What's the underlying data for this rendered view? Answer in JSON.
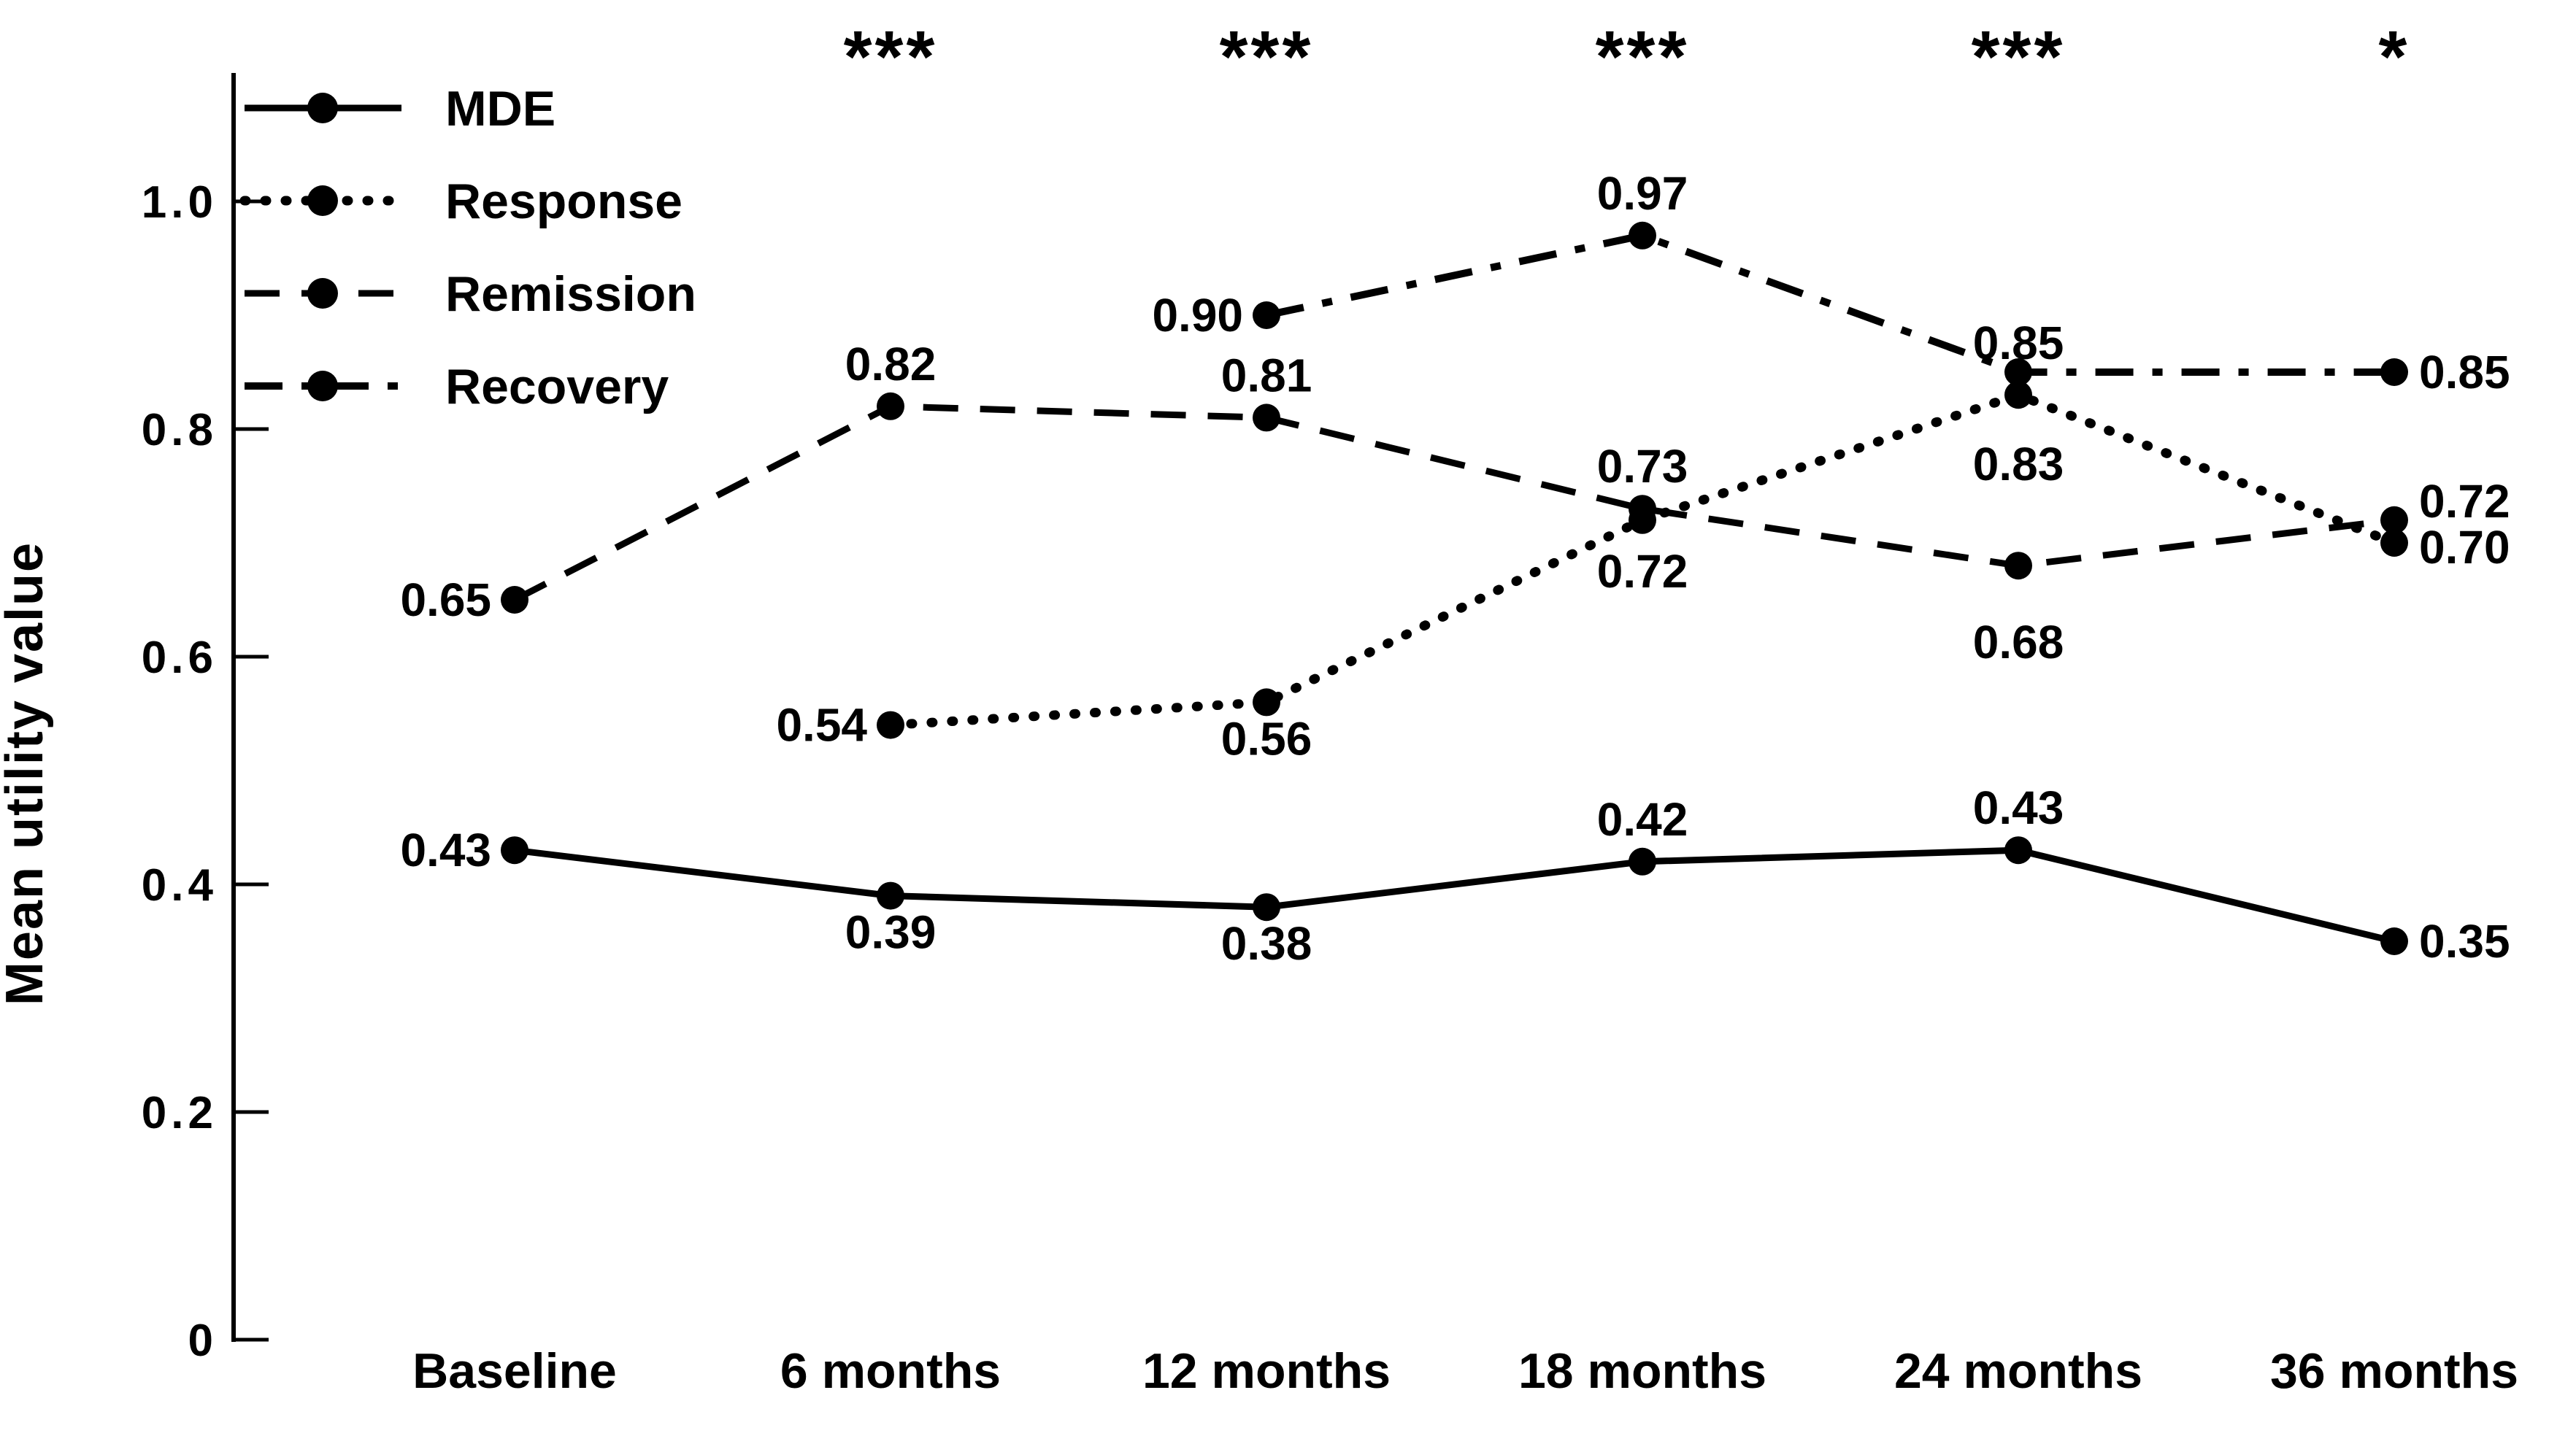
{
  "chart_data": {
    "type": "line",
    "title": "",
    "xlabel": "",
    "ylabel": "Mean utility value",
    "categories": [
      "Baseline",
      "6 months",
      "12 months",
      "18 months",
      "24 months",
      "36 months"
    ],
    "ylim": [
      0,
      1.1
    ],
    "ytick_values": [
      0,
      0.2,
      0.4,
      0.6,
      0.8,
      1.0
    ],
    "ytick_labels": [
      "0",
      "0.2",
      "0.4",
      "0.6",
      "0.8",
      "1.0"
    ],
    "grid": false,
    "legend_position": "top-left",
    "marker": "filled-circle",
    "line_color": "#000000",
    "significance": [
      "",
      "***",
      "***",
      "***",
      "***",
      "*"
    ],
    "series": [
      {
        "name": "MDE",
        "line_style": "solid",
        "label_color": "#000000",
        "values": [
          0.43,
          0.39,
          0.38,
          0.42,
          0.43,
          0.35
        ],
        "value_labels": [
          "0.43",
          "0.39",
          "0.38",
          "0.42",
          "0.43",
          "0.35"
        ],
        "label_positions": [
          "left",
          "below",
          "below",
          "above",
          "above",
          "right"
        ],
        "label_dy": [
          0,
          0,
          0,
          0,
          0,
          0
        ]
      },
      {
        "name": "Response",
        "line_style": "dotted",
        "label_color": "#FA2B1C",
        "values": [
          null,
          0.54,
          0.56,
          0.72,
          0.83,
          0.7
        ],
        "value_labels": [
          null,
          "0.54",
          "0.56",
          "0.72",
          "0.83",
          "0.70"
        ],
        "label_positions": [
          null,
          "left",
          "below",
          "below",
          "below",
          "right"
        ],
        "label_dy": [
          0,
          0,
          0,
          20,
          45,
          6
        ]
      },
      {
        "name": "Remission",
        "line_style": "dashed",
        "label_color": "#1414FA",
        "values": [
          0.65,
          0.82,
          0.81,
          0.73,
          0.68,
          0.72
        ],
        "value_labels": [
          "0.65",
          "0.82",
          "0.81",
          "0.73",
          "0.68",
          "0.72"
        ],
        "label_positions": [
          "left",
          "above",
          "above",
          "above",
          "below",
          "right"
        ],
        "label_dy": [
          0,
          0,
          0,
          0,
          55,
          -26
        ]
      },
      {
        "name": "Recovery",
        "line_style": "dashdot",
        "label_color": "#00A33C",
        "values": [
          null,
          null,
          0.9,
          0.97,
          0.85,
          0.85
        ],
        "value_labels": [
          null,
          null,
          "0.90",
          "0.97",
          "0.85",
          "0.85"
        ],
        "label_positions": [
          null,
          null,
          "left",
          "above",
          "above",
          "right"
        ],
        "label_dy": [
          0,
          0,
          0,
          0,
          18,
          0
        ]
      }
    ]
  }
}
